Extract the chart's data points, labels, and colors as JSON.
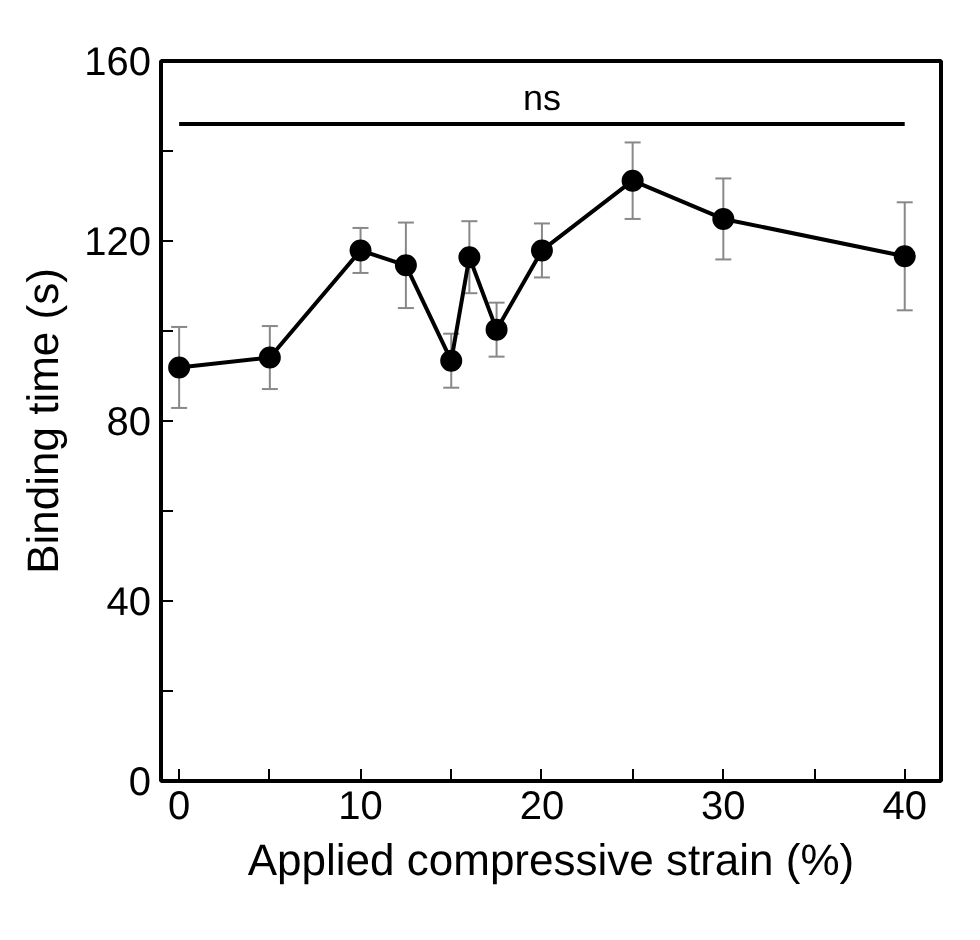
{
  "chart_data": {
    "type": "line",
    "xlabel": "Applied compressive strain (%)",
    "ylabel": "Binding time (s)",
    "x": [
      0,
      5,
      10,
      12.5,
      15,
      16,
      17.5,
      20,
      25,
      30,
      40
    ],
    "series": [
      {
        "color": "#000000",
        "values": [
          91.9,
          94.1,
          117.9,
          114.6,
          93.4,
          116.4,
          100.3,
          117.9,
          133.4,
          124.9,
          116.6
        ],
        "errors": [
          9,
          7,
          5,
          9.5,
          6,
          8,
          6,
          6,
          8.5,
          9,
          12
        ]
      }
    ],
    "xlim": [
      -1,
      42
    ],
    "ylim": [
      0,
      160
    ],
    "xticks": [
      0,
      {
        "value": 5,
        "label": null
      },
      10,
      {
        "value": 15,
        "label": null
      },
      20,
      {
        "value": 25,
        "label": null
      },
      30,
      {
        "value": 35,
        "label": null
      },
      40
    ],
    "yticks": [
      0,
      {
        "value": 20,
        "label": null
      },
      40,
      {
        "value": 60,
        "label": null
      },
      80,
      {
        "value": 100,
        "label": null
      },
      120,
      {
        "value": 140,
        "label": null
      },
      160
    ],
    "ref_lines": [
      {
        "axis": "y",
        "value": 146,
        "label": "ns"
      }
    ],
    "marker": "circle",
    "grid": false
  }
}
